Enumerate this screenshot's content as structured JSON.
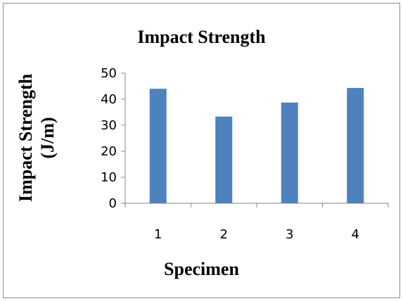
{
  "chart_data": {
    "type": "bar",
    "title": "Impact Strength",
    "xlabel": "Specimen",
    "ylabel_lines": [
      "Impact Strength",
      "(J/m)"
    ],
    "categories": [
      "1",
      "2",
      "3",
      "4"
    ],
    "values": [
      44,
      33.3,
      38.7,
      44.3
    ],
    "ylim": [
      0,
      50
    ],
    "yticks": [
      0,
      10,
      20,
      30,
      40,
      50
    ],
    "grid": false,
    "legend": "none",
    "bar_color": "#4f81bd"
  }
}
